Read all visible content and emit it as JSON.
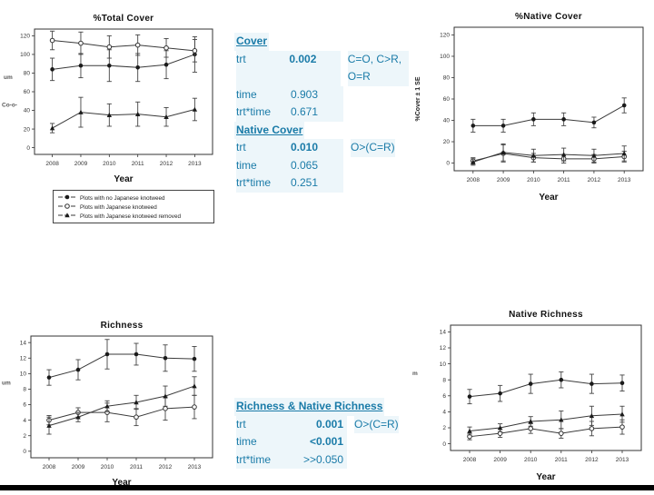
{
  "page": {
    "background": "#ffffff",
    "accent_color": "#1a7ba8",
    "bottom_bar_color": "#000000"
  },
  "legend": {
    "items": [
      {
        "marker": "filled-circle",
        "label": "Plots with no Japanese knotweed"
      },
      {
        "marker": "open-circle",
        "label": "Plots with Japanese knotweed"
      },
      {
        "marker": "filled-triangle",
        "label": "Plots with Japanese knotweed removed"
      }
    ]
  },
  "stats_blocks": [
    {
      "id": "cover-stats",
      "p_align": "left",
      "sections": [
        {
          "heading": "Cover",
          "rows": [
            {
              "term": "trt",
              "p": "0.002",
              "bold": true,
              "note": "C=O, C>R, O=R"
            },
            {
              "term": "time",
              "p": "0.903",
              "bold": false,
              "note": ""
            },
            {
              "term": "trt*time",
              "p": "0.671",
              "bold": false,
              "note": ""
            }
          ]
        },
        {
          "heading": "Native Cover",
          "rows": [
            {
              "term": "trt",
              "p": "0.010",
              "bold": true,
              "note": "O>(C=R)"
            },
            {
              "term": "time",
              "p": "0.065",
              "bold": false,
              "note": ""
            },
            {
              "term": "trt*time",
              "p": "0.251",
              "bold": false,
              "note": ""
            }
          ]
        }
      ]
    },
    {
      "id": "richness-stats",
      "p_align": "right",
      "sections": [
        {
          "heading": "Richness & Native Richness",
          "rows": [
            {
              "term": "trt",
              "p": "0.001",
              "bold": true,
              "note": "O>(C=R)"
            },
            {
              "term": "time",
              "p": "<0.001",
              "bold": true,
              "note": ""
            },
            {
              "term": "trt*time",
              "p": ">>0.050",
              "bold": false,
              "note": ""
            }
          ]
        }
      ]
    }
  ],
  "chart_data": [
    {
      "type": "line",
      "title": "%Total Cover",
      "xlabel": "Year",
      "ylabel": "um",
      "ylabel2": "Co-o-",
      "ylabel_rotated": false,
      "categories": [
        "2008",
        "2009",
        "2010",
        "2011",
        "2012",
        "2013"
      ],
      "ylim": [
        0,
        120
      ],
      "yticks": [
        0,
        20,
        40,
        60,
        80,
        100,
        120
      ],
      "grid": false,
      "series": [
        {
          "name": "Plots with no Japanese knotweed",
          "marker": "filled-circle",
          "values": [
            84,
            88,
            88,
            86,
            89,
            100
          ],
          "errors": [
            12,
            13,
            17,
            15,
            15,
            19
          ]
        },
        {
          "name": "Plots with Japanese knotweed",
          "marker": "open-circle",
          "values": [
            115,
            112,
            108,
            110,
            107,
            104
          ],
          "errors": [
            10,
            12,
            12,
            11,
            10,
            12
          ]
        },
        {
          "name": "Plots with Japanese knotweed removed",
          "marker": "filled-triangle",
          "values": [
            21,
            38,
            35,
            36,
            33,
            41
          ],
          "errors": [
            5,
            16,
            12,
            13,
            10,
            12
          ]
        }
      ]
    },
    {
      "type": "line",
      "title": "%Native Cover",
      "xlabel": "Year",
      "ylabel": "%Cover ± 1 SE",
      "ylabel_rotated": true,
      "categories": [
        "2008",
        "2009",
        "2010",
        "2011",
        "2012",
        "2013"
      ],
      "ylim": [
        0,
        120
      ],
      "yticks": [
        0,
        20,
        40,
        60,
        80,
        100,
        120
      ],
      "grid": false,
      "series": [
        {
          "name": "Plots with no Japanese knotweed",
          "marker": "filled-circle",
          "values": [
            35,
            35,
            41,
            41,
            38,
            54
          ],
          "errors": [
            6,
            6,
            6,
            6,
            5,
            7
          ]
        },
        {
          "name": "Plots with Japanese knotweed",
          "marker": "open-circle",
          "values": [
            2,
            9,
            5,
            4,
            4,
            6
          ],
          "errors": [
            3,
            8,
            4,
            4,
            4,
            5
          ]
        },
        {
          "name": "Plots with Japanese knotweed removed",
          "marker": "filled-triangle",
          "values": [
            1,
            10,
            7,
            8,
            7,
            9
          ],
          "errors": [
            3,
            8,
            6,
            6,
            6,
            7
          ]
        }
      ]
    },
    {
      "type": "line",
      "title": "Richness",
      "xlabel": "Year",
      "ylabel": "um",
      "ylabel_rotated": false,
      "categories": [
        "2008",
        "2009",
        "2010",
        "2011",
        "2012",
        "2013"
      ],
      "ylim": [
        0,
        14
      ],
      "yticks": [
        0,
        2,
        4,
        6,
        8,
        10,
        12,
        14
      ],
      "grid": false,
      "series": [
        {
          "name": "Plots with no Japanese knotweed",
          "marker": "filled-circle",
          "values": [
            9.5,
            10.5,
            12.5,
            12.5,
            12.0,
            11.9
          ],
          "errors": [
            1.0,
            1.3,
            1.9,
            1.4,
            1.7,
            1.6
          ]
        },
        {
          "name": "Plots with Japanese knotweed",
          "marker": "open-circle",
          "values": [
            4.0,
            5.0,
            5.0,
            4.4,
            5.5,
            5.7
          ],
          "errors": [
            0.6,
            0.6,
            1.2,
            1.1,
            1.5,
            1.5
          ]
        },
        {
          "name": "Plots with Japanese knotweed removed",
          "marker": "filled-triangle",
          "values": [
            3.3,
            4.4,
            5.8,
            6.3,
            7.1,
            8.4
          ],
          "errors": [
            1.1,
            0.6,
            0.7,
            0.9,
            1.3,
            1.2
          ]
        }
      ]
    },
    {
      "type": "line",
      "title": "Native Richness",
      "xlabel": "Year",
      "ylabel": "m",
      "ylabel_rotated": false,
      "categories": [
        "2008",
        "2009",
        "2010",
        "2011",
        "2012",
        "2013"
      ],
      "ylim": [
        0,
        14
      ],
      "yticks": [
        0,
        2,
        4,
        6,
        8,
        10,
        12,
        14
      ],
      "grid": false,
      "series": [
        {
          "name": "Plots with no Japanese knotweed",
          "marker": "filled-circle",
          "values": [
            5.9,
            6.3,
            7.5,
            8.0,
            7.5,
            7.6
          ],
          "errors": [
            0.9,
            1.0,
            1.2,
            1.0,
            1.2,
            1.0
          ]
        },
        {
          "name": "Plots with Japanese knotweed",
          "marker": "open-circle",
          "values": [
            0.9,
            1.3,
            1.9,
            1.3,
            1.9,
            2.1
          ],
          "errors": [
            0.4,
            0.5,
            0.6,
            0.6,
            0.9,
            0.9
          ]
        },
        {
          "name": "Plots with Japanese knotweed removed",
          "marker": "filled-triangle",
          "values": [
            1.6,
            2.0,
            2.8,
            3.0,
            3.5,
            3.7
          ],
          "errors": [
            0.5,
            0.5,
            0.6,
            1.1,
            1.2,
            1.0
          ]
        }
      ]
    }
  ]
}
